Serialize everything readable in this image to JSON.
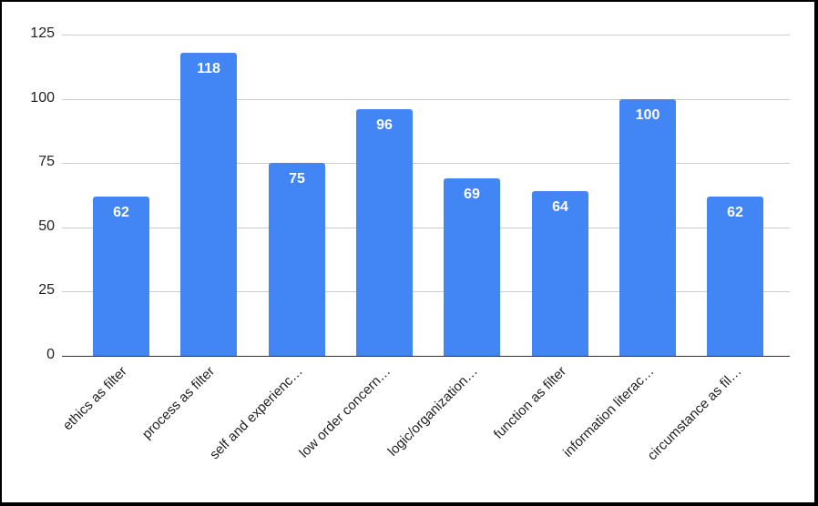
{
  "chart_data": {
    "type": "bar",
    "title": "",
    "xlabel": "",
    "ylabel": "",
    "categories": [
      "ethics as filter",
      "process as filter",
      "self and experienc…",
      "low order concern…",
      "logic/organization…",
      "function as filter",
      "information literac…",
      "circumstance as fil…"
    ],
    "values": [
      62,
      118,
      75,
      96,
      69,
      64,
      100,
      62
    ],
    "ylim": [
      0,
      125
    ],
    "yticks": [
      "0",
      "25",
      "50",
      "75",
      "100",
      "125"
    ],
    "grid": true,
    "legend": "none",
    "data_labels": true,
    "bar_color": "#4285f4"
  }
}
